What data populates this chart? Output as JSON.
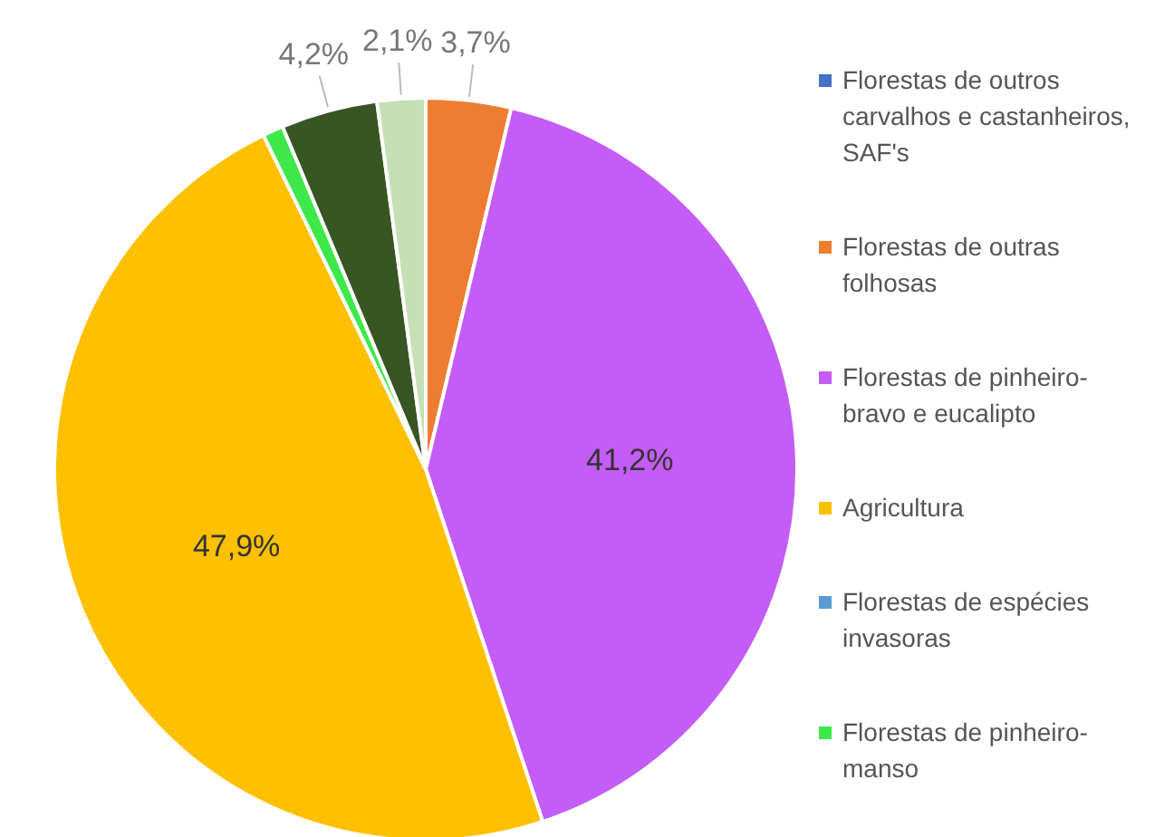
{
  "chart_data": {
    "type": "pie",
    "categories": [
      "Florestas de outros carvalhos e castanheiros, SAF's",
      "Florestas de outras folhosas",
      "Florestas de pinheiro-bravo e eucalipto",
      "Agricultura",
      "Florestas de espécies invasoras",
      "Florestas de pinheiro-manso",
      null,
      null
    ],
    "values": [
      0,
      3.7,
      41.2,
      47.9,
      0,
      0.9,
      4.2,
      2.1
    ],
    "value_labels": [
      null,
      "3,7%",
      "41,2%",
      "47,9%",
      null,
      null,
      "4,2%",
      "2,1%"
    ],
    "colors": [
      "#4472c4",
      "#ed7d31",
      "#c45cf7",
      "#ffc000",
      "#5b9bd5",
      "#3ee84a",
      "#375623",
      "#c5e0b4"
    ],
    "legend": "right"
  }
}
